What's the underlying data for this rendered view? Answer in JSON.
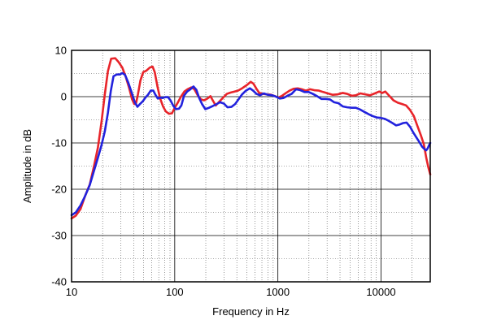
{
  "chart_data": {
    "type": "line",
    "title": "",
    "xlabel": "Frequency in Hz",
    "ylabel": "Amplitude in dB",
    "x_scale": "log",
    "xlim": [
      10,
      30000
    ],
    "ylim": [
      -40,
      10
    ],
    "x_tick_labels": [
      {
        "value": 10,
        "label": "10"
      },
      {
        "value": 100,
        "label": "100"
      },
      {
        "value": 1000,
        "label": "1000"
      },
      {
        "value": 10000,
        "label": "10000"
      }
    ],
    "y_tick_labels": [
      {
        "value": 10,
        "label": "10"
      },
      {
        "value": 0,
        "label": "0"
      },
      {
        "value": -10,
        "label": "-10"
      },
      {
        "value": -20,
        "label": "-20"
      },
      {
        "value": -30,
        "label": "-30"
      },
      {
        "value": -40,
        "label": "-40"
      }
    ],
    "grid": true,
    "legend": "none",
    "series": [
      {
        "color": "#e8242a",
        "points": [
          [
            10,
            -26.3
          ],
          [
            11,
            -25.7
          ],
          [
            12.2,
            -24.3
          ],
          [
            13.5,
            -21.5
          ],
          [
            15,
            -19
          ],
          [
            16.5,
            -15
          ],
          [
            18,
            -11
          ],
          [
            19.5,
            -5.5
          ],
          [
            21,
            0.5
          ],
          [
            22.5,
            5.5
          ],
          [
            24.2,
            8.2
          ],
          [
            26.5,
            8.3
          ],
          [
            28.5,
            7.5
          ],
          [
            31,
            6.3
          ],
          [
            33.5,
            4.3
          ],
          [
            36,
            2
          ],
          [
            38.5,
            -0.5
          ],
          [
            40.5,
            -1.6
          ],
          [
            42,
            -1.6
          ],
          [
            44,
            0.5
          ],
          [
            46.5,
            3.5
          ],
          [
            49.5,
            5.3
          ],
          [
            53,
            5.6
          ],
          [
            57.5,
            6.3
          ],
          [
            61,
            6.5
          ],
          [
            64,
            5.3
          ],
          [
            68,
            2.2
          ],
          [
            72,
            -0.3
          ],
          [
            77,
            -2.1
          ],
          [
            82,
            -3.2
          ],
          [
            88,
            -3.7
          ],
          [
            94,
            -3.6
          ],
          [
            100,
            -2.4
          ],
          [
            107,
            -1.3
          ],
          [
            115,
            0
          ],
          [
            124,
            1.1
          ],
          [
            133,
            1.6
          ],
          [
            145,
            2
          ],
          [
            155,
            1.6
          ],
          [
            167,
            0.3
          ],
          [
            180,
            -0.6
          ],
          [
            192,
            -0.8
          ],
          [
            208,
            -0.4
          ],
          [
            222,
            0.1
          ],
          [
            235,
            -0.9
          ],
          [
            250,
            -1.9
          ],
          [
            270,
            -1.1
          ],
          [
            295,
            -0.2
          ],
          [
            320,
            0.6
          ],
          [
            350,
            0.9
          ],
          [
            380,
            1.1
          ],
          [
            410,
            1.3
          ],
          [
            450,
            1.8
          ],
          [
            500,
            2.5
          ],
          [
            545,
            3.2
          ],
          [
            580,
            2.8
          ],
          [
            620,
            1.7
          ],
          [
            660,
            0.8
          ],
          [
            720,
            0.6
          ],
          [
            790,
            0.5
          ],
          [
            860,
            0.4
          ],
          [
            940,
            0.1
          ],
          [
            1010,
            -0.2
          ],
          [
            1100,
            0.2
          ],
          [
            1200,
            0.8
          ],
          [
            1300,
            1.3
          ],
          [
            1420,
            1.7
          ],
          [
            1560,
            1.8
          ],
          [
            1700,
            1.6
          ],
          [
            1870,
            1.3
          ],
          [
            2050,
            1.6
          ],
          [
            2250,
            1.4
          ],
          [
            2500,
            1.3
          ],
          [
            2750,
            1
          ],
          [
            3050,
            0.7
          ],
          [
            3400,
            0.4
          ],
          [
            3800,
            0.5
          ],
          [
            4250,
            0.8
          ],
          [
            4700,
            0.6
          ],
          [
            5200,
            0.2
          ],
          [
            5700,
            0.3
          ],
          [
            6300,
            0.7
          ],
          [
            7000,
            0.5
          ],
          [
            7800,
            0.3
          ],
          [
            8700,
            0.7
          ],
          [
            9600,
            1.1
          ],
          [
            10300,
            0.8
          ],
          [
            11000,
            1.1
          ],
          [
            12000,
            0.2
          ],
          [
            13200,
            -0.8
          ],
          [
            14500,
            -1.3
          ],
          [
            16000,
            -1.6
          ],
          [
            17500,
            -1.9
          ],
          [
            19000,
            -2.8
          ],
          [
            20800,
            -4.2
          ],
          [
            22500,
            -6.3
          ],
          [
            24300,
            -8.3
          ],
          [
            26000,
            -10.3
          ],
          [
            27500,
            -13.3
          ],
          [
            28700,
            -15.2
          ],
          [
            30000,
            -16.8
          ]
        ]
      },
      {
        "color": "#2222dd",
        "points": [
          [
            10,
            -25.6
          ],
          [
            11,
            -25
          ],
          [
            12.2,
            -23.5
          ],
          [
            13.5,
            -21.5
          ],
          [
            15,
            -19.1
          ],
          [
            16.5,
            -16
          ],
          [
            18,
            -13.2
          ],
          [
            19.5,
            -10.5
          ],
          [
            21,
            -7.5
          ],
          [
            22.5,
            -3.5
          ],
          [
            24,
            1.2
          ],
          [
            25.5,
            4.4
          ],
          [
            27.5,
            4.8
          ],
          [
            29.5,
            4.8
          ],
          [
            31,
            5.1
          ],
          [
            33,
            4.7
          ],
          [
            35.5,
            3
          ],
          [
            38.5,
            0.7
          ],
          [
            41,
            -1.2
          ],
          [
            43.5,
            -2.2
          ],
          [
            46,
            -1.6
          ],
          [
            49,
            -1
          ],
          [
            52,
            -0.2
          ],
          [
            55,
            0.4
          ],
          [
            58.5,
            1.3
          ],
          [
            62,
            1.3
          ],
          [
            65,
            0.4
          ],
          [
            68.5,
            -0.4
          ],
          [
            72,
            -0.2
          ],
          [
            76.5,
            -0.3
          ],
          [
            81,
            -0.1
          ],
          [
            86,
            -0.1
          ],
          [
            91,
            -0.8
          ],
          [
            97,
            -2
          ],
          [
            103,
            -2.7
          ],
          [
            110,
            -2.6
          ],
          [
            116,
            -1.9
          ],
          [
            123,
            0.2
          ],
          [
            132,
            1.1
          ],
          [
            142,
            1.6
          ],
          [
            152,
            2.2
          ],
          [
            162,
            1.5
          ],
          [
            172,
            -0.2
          ],
          [
            184,
            -1.6
          ],
          [
            198,
            -2.7
          ],
          [
            215,
            -2.4
          ],
          [
            235,
            -2
          ],
          [
            255,
            -1.6
          ],
          [
            275,
            -1.2
          ],
          [
            300,
            -1.5
          ],
          [
            325,
            -2.3
          ],
          [
            355,
            -2.2
          ],
          [
            385,
            -1.6
          ],
          [
            415,
            -0.6
          ],
          [
            450,
            0.5
          ],
          [
            490,
            1.3
          ],
          [
            535,
            1.8
          ],
          [
            575,
            1.3
          ],
          [
            620,
            0.6
          ],
          [
            670,
            0.3
          ],
          [
            730,
            0.7
          ],
          [
            800,
            0.4
          ],
          [
            880,
            0.3
          ],
          [
            960,
            0
          ],
          [
            1040,
            -0.4
          ],
          [
            1130,
            -0.3
          ],
          [
            1240,
            0.2
          ],
          [
            1360,
            0.6
          ],
          [
            1500,
            1.6
          ],
          [
            1650,
            1.4
          ],
          [
            1810,
            1
          ],
          [
            1990,
            1
          ],
          [
            2180,
            0.6
          ],
          [
            2400,
            0.1
          ],
          [
            2650,
            -0.5
          ],
          [
            2900,
            -0.5
          ],
          [
            3200,
            -0.6
          ],
          [
            3500,
            -1.2
          ],
          [
            3850,
            -1.4
          ],
          [
            4250,
            -2.1
          ],
          [
            4700,
            -2.3
          ],
          [
            5200,
            -2.4
          ],
          [
            5700,
            -2.4
          ],
          [
            6300,
            -2.8
          ],
          [
            6900,
            -3.3
          ],
          [
            7600,
            -3.8
          ],
          [
            8300,
            -4.2
          ],
          [
            9100,
            -4.5
          ],
          [
            10000,
            -4.6
          ],
          [
            10900,
            -4.8
          ],
          [
            11800,
            -5.2
          ],
          [
            12900,
            -5.7
          ],
          [
            14000,
            -6.2
          ],
          [
            15200,
            -6
          ],
          [
            16400,
            -5.7
          ],
          [
            17700,
            -5.6
          ],
          [
            19100,
            -6.5
          ],
          [
            20600,
            -7.8
          ],
          [
            22000,
            -8.8
          ],
          [
            23500,
            -9.8
          ],
          [
            25000,
            -10.8
          ],
          [
            26300,
            -11.3
          ],
          [
            27400,
            -11.6
          ],
          [
            28300,
            -11.2
          ],
          [
            29200,
            -10.5
          ],
          [
            30000,
            -10
          ]
        ]
      }
    ]
  }
}
